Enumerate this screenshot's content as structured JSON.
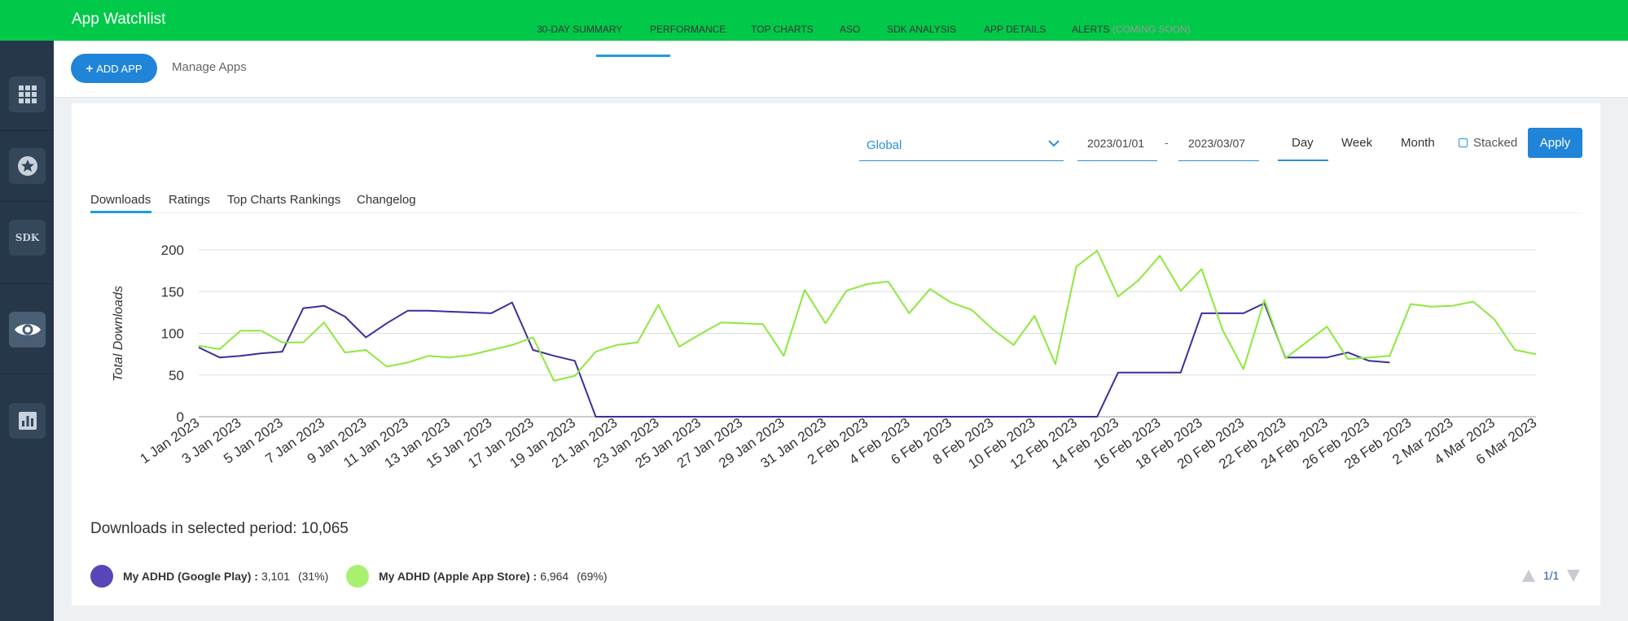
{
  "app": {
    "title": "App Watchlist"
  },
  "sidebar": {
    "items": [
      {
        "icon": "apps-grid-icon"
      },
      {
        "icon": "star-icon"
      },
      {
        "icon": "sdk-icon",
        "label": "SDK"
      },
      {
        "icon": "eye-icon",
        "active": true
      },
      {
        "icon": "bar-chart-icon"
      }
    ]
  },
  "toolbar": {
    "add_app": "ADD APP",
    "manage_apps": "Manage Apps",
    "tabs": [
      "30-DAY SUMMARY",
      "PERFORMANCE",
      "TOP CHARTS",
      "ASO",
      "SDK ANALYSIS",
      "APP DETAILS",
      "ALERTS"
    ],
    "alerts_suffix": "(COMING SOON)",
    "active_tab": "PERFORMANCE"
  },
  "filters": {
    "region": "Global",
    "start_date": "2023/01/01",
    "date_separator": "-",
    "end_date": "2023/03/07",
    "periods": [
      "Day",
      "Week",
      "Month"
    ],
    "active_period": "Day",
    "stacked_label": "Stacked",
    "stacked_checked": false,
    "apply": "Apply"
  },
  "subtabs": {
    "items": [
      "Downloads",
      "Ratings",
      "Top Charts Rankings",
      "Changelog"
    ],
    "active": "Downloads"
  },
  "chart_data": {
    "type": "line",
    "ylabel": "Total Downloads",
    "ylim": [
      0,
      200
    ],
    "yticks": [
      0,
      50,
      100,
      150,
      200
    ],
    "xtick_labels": [
      "1 Jan 2023",
      "3 Jan 2023",
      "5 Jan 2023",
      "7 Jan 2023",
      "9 Jan 2023",
      "11 Jan 2023",
      "13 Jan 2023",
      "15 Jan 2023",
      "17 Jan 2023",
      "19 Jan 2023",
      "21 Jan 2023",
      "23 Jan 2023",
      "25 Jan 2023",
      "27 Jan 2023",
      "29 Jan 2023",
      "31 Jan 2023",
      "2 Feb 2023",
      "4 Feb 2023",
      "6 Feb 2023",
      "8 Feb 2023",
      "10 Feb 2023",
      "12 Feb 2023",
      "14 Feb 2023",
      "16 Feb 2023",
      "18 Feb 2023",
      "20 Feb 2023",
      "22 Feb 2023",
      "24 Feb 2023",
      "26 Feb 2023",
      "28 Feb 2023",
      "2 Mar 2023",
      "4 Mar 2023",
      "6 Mar 2023"
    ],
    "grid": true,
    "series": [
      {
        "name": "My ADHD (Google Play)",
        "color": "#3a2f9a",
        "values": [
          83,
          71,
          73,
          76,
          78,
          130,
          133,
          120,
          95,
          112,
          127,
          127,
          126,
          125,
          124,
          137,
          80,
          73,
          67,
          0,
          0,
          0,
          0,
          0,
          0,
          0,
          0,
          0,
          0,
          0,
          0,
          0,
          0,
          0,
          0,
          0,
          0,
          0,
          0,
          0,
          0,
          0,
          0,
          0,
          53,
          53,
          53,
          53,
          124,
          124,
          124,
          136,
          71,
          71,
          71,
          77,
          67,
          65
        ]
      },
      {
        "name": "My ADHD (Apple App Store)",
        "color": "#8de83c",
        "values": [
          85,
          81,
          103,
          103,
          89,
          89,
          113,
          77,
          80,
          60,
          65,
          73,
          71,
          74,
          80,
          86,
          95,
          43,
          49,
          78,
          86,
          89,
          134,
          84,
          99,
          113,
          112,
          111,
          73,
          152,
          112,
          151,
          159,
          162,
          124,
          153,
          137,
          128,
          105,
          86,
          121,
          63,
          180,
          199,
          144,
          164,
          193,
          151,
          177,
          104,
          57,
          140,
          70,
          89,
          108,
          69,
          71,
          73,
          135,
          132,
          133,
          138,
          117,
          80,
          75
        ]
      }
    ]
  },
  "summary": {
    "label": "Downloads in selected period: 10,065"
  },
  "legend": [
    {
      "name": "My ADHD (Google Play) :",
      "value": "3,101",
      "pct": "(31%)",
      "color": "#5646b8"
    },
    {
      "name": "My ADHD (Apple App Store) :",
      "value": "6,964",
      "pct": "(69%)",
      "color": "#a9f070"
    }
  ],
  "pager": {
    "label": "1/1"
  }
}
